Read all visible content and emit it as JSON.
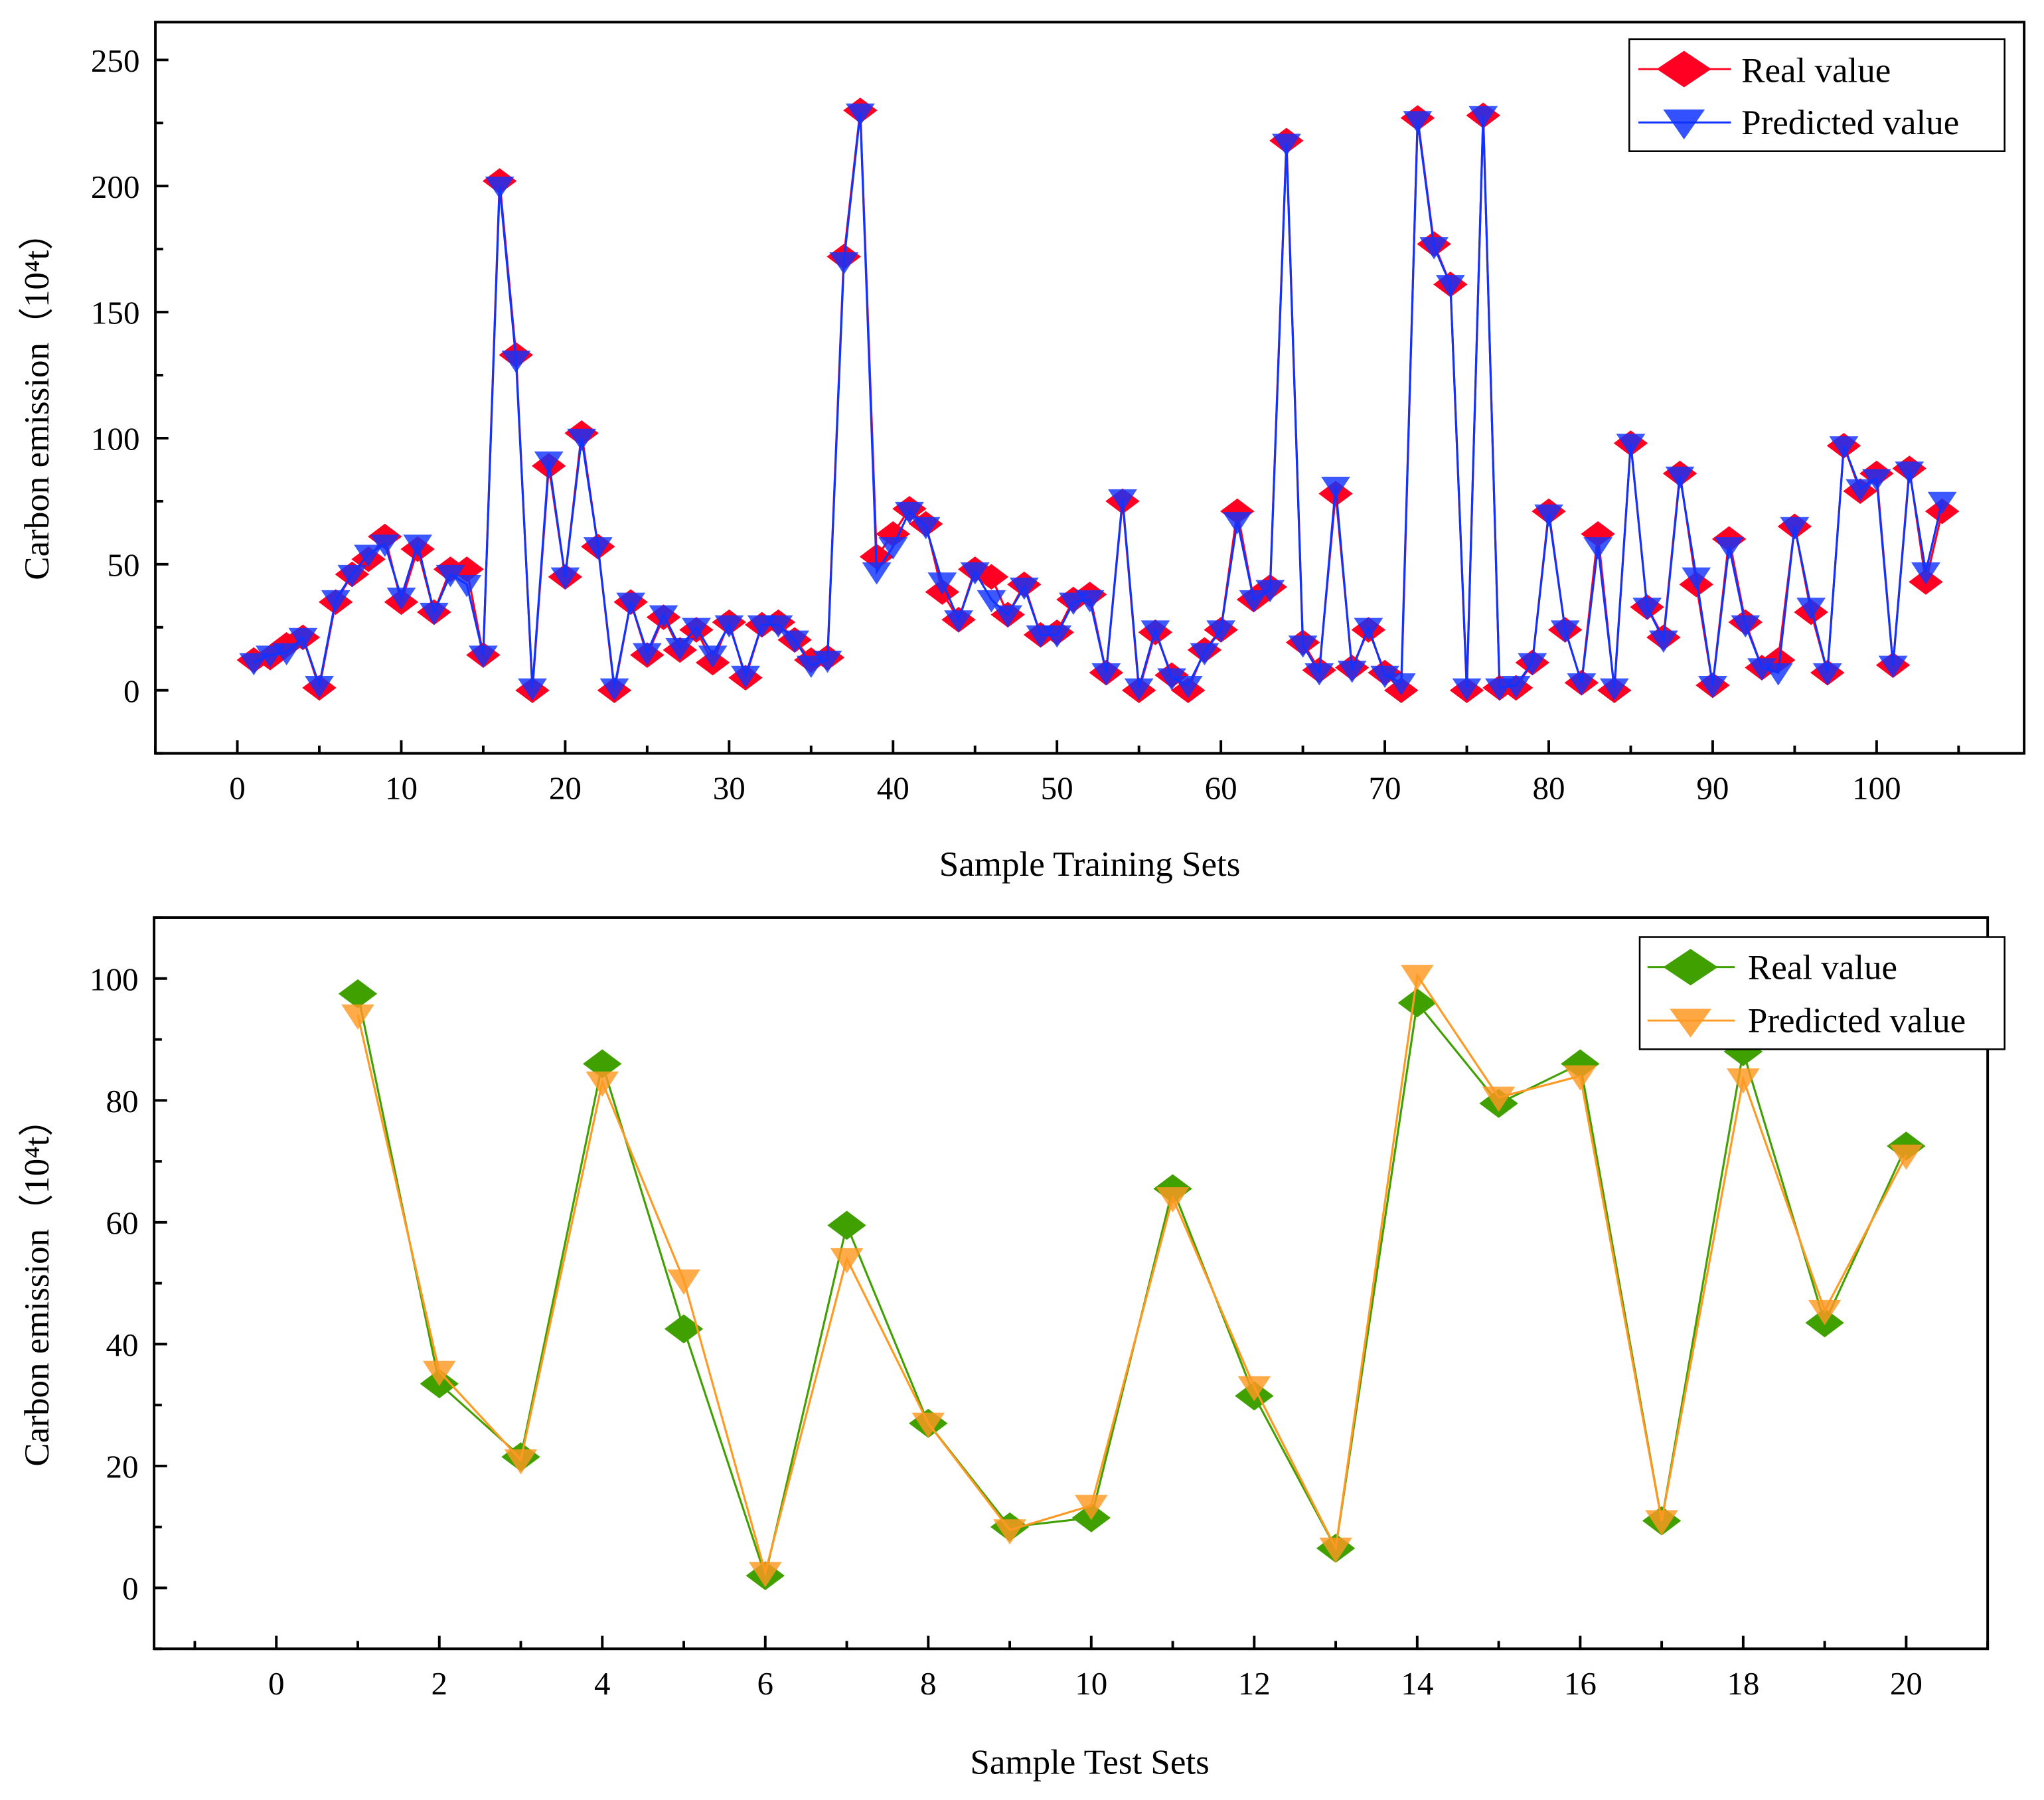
{
  "chart_data": [
    {
      "type": "line",
      "xlabel": "Sample Training Sets",
      "ylabel": "Carbon emission（10⁴t）",
      "xlim": [
        -5,
        109
      ],
      "ylim": [
        -25,
        265
      ],
      "xticks": [
        0,
        10,
        20,
        30,
        40,
        50,
        60,
        70,
        80,
        90,
        100
      ],
      "yticks": [
        0,
        50,
        100,
        150,
        200,
        250
      ],
      "grid": false,
      "legend_position": "top-right",
      "colors": {
        "real": "#ff0022",
        "predicted": "#1133ff"
      },
      "x": [
        1,
        2,
        3,
        4,
        5,
        6,
        7,
        8,
        9,
        10,
        11,
        12,
        13,
        14,
        15,
        16,
        17,
        18,
        19,
        20,
        21,
        22,
        23,
        24,
        25,
        26,
        27,
        28,
        29,
        30,
        31,
        32,
        33,
        34,
        35,
        36,
        37,
        38,
        39,
        40,
        41,
        42,
        43,
        44,
        45,
        46,
        47,
        48,
        49,
        50,
        51,
        52,
        53,
        54,
        55,
        56,
        57,
        58,
        59,
        60,
        61,
        62,
        63,
        64,
        65,
        66,
        67,
        68,
        69,
        70,
        71,
        72,
        73,
        74,
        75,
        76,
        77,
        78,
        79,
        80,
        81,
        82,
        83,
        84,
        85,
        86,
        87,
        88,
        89,
        90,
        91,
        92,
        93,
        94,
        95,
        96,
        97,
        98,
        99,
        100,
        101,
        102,
        103,
        104
      ],
      "series": [
        {
          "name": "Real value",
          "marker": "diamond",
          "values": [
            12,
            13,
            18,
            21,
            1,
            35,
            46,
            52,
            61,
            35,
            56,
            31,
            48,
            48,
            14,
            202,
            133,
            0,
            89,
            45,
            102,
            57,
            0,
            35,
            14,
            29,
            16,
            24,
            11,
            27,
            5,
            26,
            27,
            20,
            12,
            13,
            172,
            230,
            53,
            62,
            72,
            66,
            39,
            28,
            48,
            45,
            30,
            42,
            22,
            23,
            36,
            38,
            7,
            75,
            0,
            23,
            6,
            0,
            16,
            24,
            71,
            36,
            41,
            218,
            19,
            8,
            78,
            9,
            24,
            7,
            0,
            227,
            177,
            161,
            0,
            228,
            1,
            1,
            11,
            71,
            24,
            3,
            62,
            0,
            98,
            33,
            21,
            86,
            42,
            2,
            60,
            27,
            9,
            12,
            65,
            31,
            7,
            97,
            79,
            86,
            10,
            88,
            43,
            71
          ]
        },
        {
          "name": "Predicted value",
          "marker": "triangle-down",
          "values": [
            11,
            14,
            15,
            21,
            2,
            36,
            46,
            54,
            58,
            37,
            58,
            31,
            46,
            42,
            14,
            200,
            131,
            1,
            91,
            45,
            100,
            57,
            1,
            35,
            15,
            30,
            17,
            25,
            14,
            26,
            6,
            26,
            26,
            20,
            10,
            12,
            170,
            229,
            47,
            57,
            71,
            65,
            43,
            28,
            47,
            36,
            30,
            41,
            22,
            22,
            35,
            36,
            7,
            76,
            1,
            24,
            5,
            2,
            15,
            24,
            67,
            36,
            40,
            217,
            18,
            7,
            81,
            8,
            25,
            6,
            3,
            226,
            176,
            161,
            1,
            228,
            1,
            2,
            11,
            70,
            24,
            3,
            57,
            1,
            98,
            33,
            20,
            85,
            45,
            2,
            57,
            26,
            9,
            7,
            65,
            33,
            7,
            97,
            80,
            84,
            10,
            87,
            47,
            75
          ]
        }
      ]
    },
    {
      "type": "line",
      "xlabel": "Sample Test Sets",
      "ylabel": "Carbon emission（10⁴t）",
      "xlim": [
        -1.5,
        21
      ],
      "ylim": [
        -10,
        110
      ],
      "xticks": [
        0,
        2,
        4,
        6,
        8,
        10,
        12,
        14,
        16,
        18,
        20
      ],
      "yticks": [
        0,
        20,
        40,
        60,
        80,
        100
      ],
      "grid": false,
      "legend_position": "top-right",
      "colors": {
        "real": "#3fa000",
        "predicted": "#ff9922"
      },
      "x": [
        1,
        2,
        3,
        4,
        5,
        6,
        7,
        8,
        9,
        10,
        11,
        12,
        13,
        14,
        15,
        16,
        17,
        18,
        19,
        20
      ],
      "series": [
        {
          "name": "Real value",
          "marker": "diamond",
          "values": [
            97.5,
            33.5,
            21.5,
            86,
            42.5,
            2,
            59.5,
            27,
            10,
            11.5,
            65.5,
            31.5,
            6.5,
            96,
            79.5,
            86,
            11,
            88,
            43.5,
            72.5
          ]
        },
        {
          "name": "Predicted value",
          "marker": "triangle-down",
          "values": [
            94,
            35.5,
            21,
            83,
            50.5,
            2.5,
            54,
            27,
            9.5,
            13.5,
            64,
            33,
            6.5,
            100.5,
            80.5,
            84,
            11,
            83.5,
            45.5,
            71
          ]
        }
      ]
    }
  ]
}
